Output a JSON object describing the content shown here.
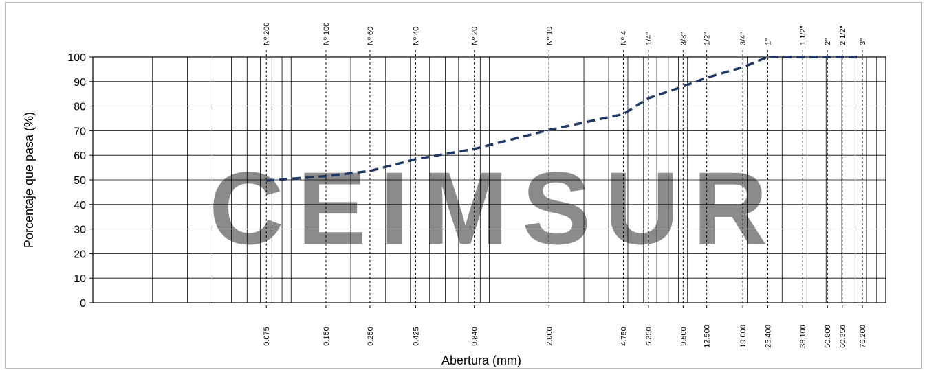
{
  "chart_data": {
    "type": "line",
    "watermark": "CEIMSUR",
    "x_label": "Abertura (mm)",
    "y_label": "Porcentaje que pasa (%)",
    "log_x": true,
    "grid": true,
    "xlim": [
      0.01,
      100
    ],
    "ylim": [
      0,
      100
    ],
    "yticks": [
      0,
      10,
      20,
      30,
      40,
      50,
      60,
      70,
      80,
      90,
      100
    ],
    "sieve_names": [
      "Nº 200",
      "Nº 100",
      "Nº 60",
      "Nº 40",
      "Nº 20",
      "Nº 10",
      "Nº 4",
      "1/4\"",
      "3/8\"",
      "1/2\"",
      "3/4\"",
      "1\"",
      "1 1/2\"",
      "2\"",
      "2 1/2\"",
      "3\""
    ],
    "xticks": [
      {
        "value": 0.075,
        "label": "0.075"
      },
      {
        "value": 0.15,
        "label": "0.150"
      },
      {
        "value": 0.25,
        "label": "0.250"
      },
      {
        "value": 0.425,
        "label": "0.425"
      },
      {
        "value": 0.84,
        "label": "0.840"
      },
      {
        "value": 2,
        "label": "2.000"
      },
      {
        "value": 4.75,
        "label": "4.750"
      },
      {
        "value": 6.35,
        "label": "6.350"
      },
      {
        "value": 9.5,
        "label": "9.500"
      },
      {
        "value": 12.5,
        "label": "12.500"
      },
      {
        "value": 19,
        "label": "19.000"
      },
      {
        "value": 25.4,
        "label": "25.400"
      },
      {
        "value": 38.1,
        "label": "38.100"
      },
      {
        "value": 50.8,
        "label": "50.800"
      },
      {
        "value": 60.35,
        "label": "60.350"
      },
      {
        "value": 76.2,
        "label": "76.200"
      }
    ],
    "x": [
      0.075,
      0.15,
      0.25,
      0.425,
      0.84,
      2,
      4.75,
      6.35,
      9.5,
      12.5,
      19,
      25.4,
      38.1,
      50.8,
      60.35,
      76.2
    ],
    "series": [
      {
        "color": "#1f3864",
        "values": [
          49.7,
          51.5,
          53.6,
          58.4,
          62.6,
          70.3,
          76.8,
          83.2,
          88,
          91.6,
          95.8,
          100,
          100,
          100,
          100,
          100
        ]
      }
    ]
  }
}
